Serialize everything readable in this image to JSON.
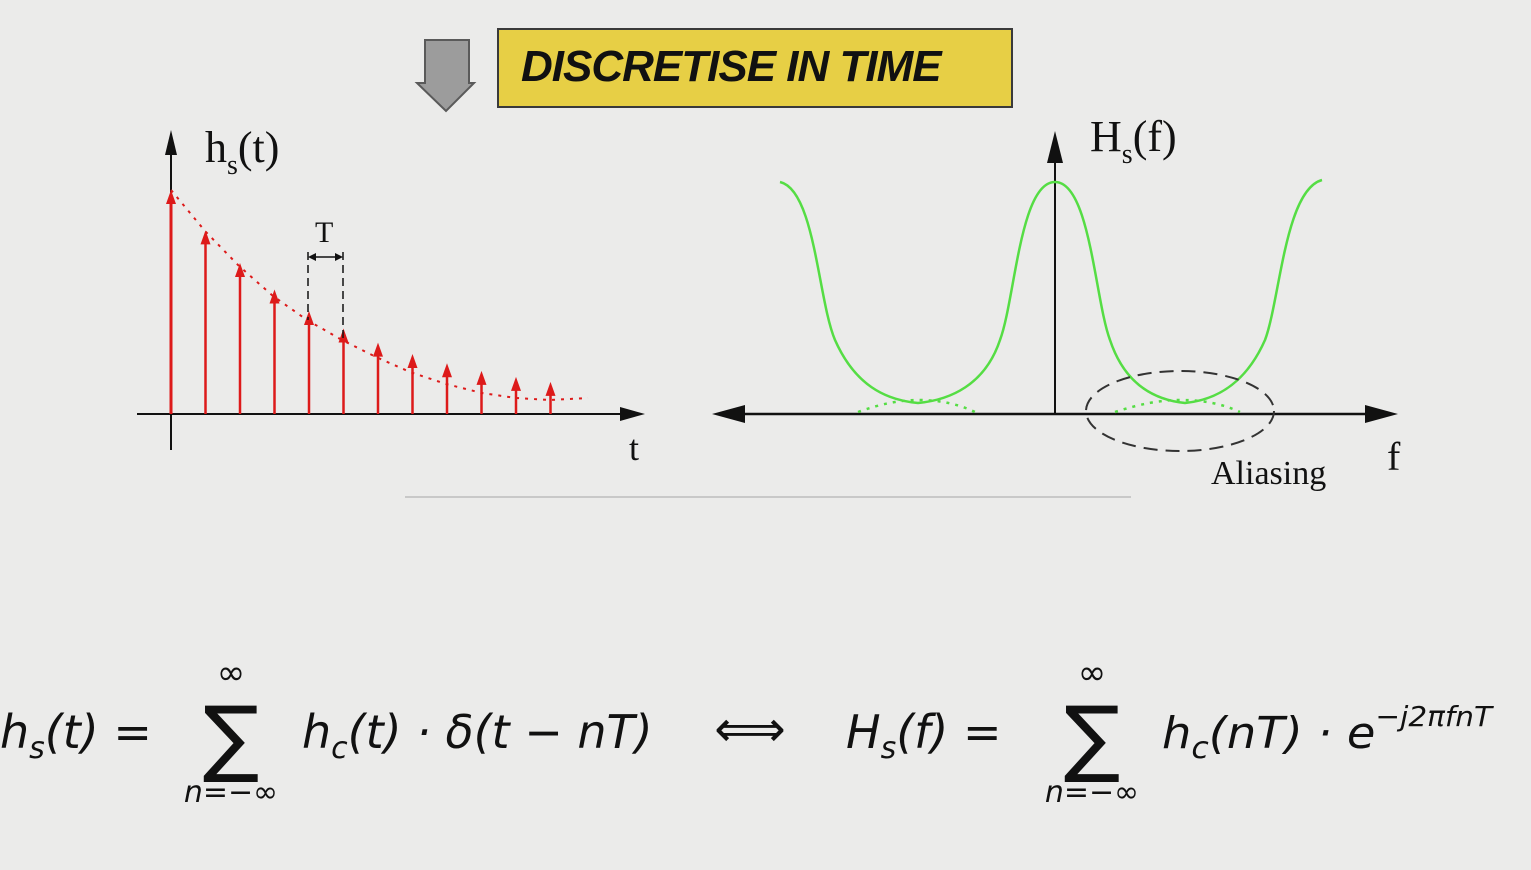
{
  "banner": {
    "text": "DISCRETISE IN TIME"
  },
  "left_plot": {
    "ylabel_main": "h",
    "ylabel_sub": "s",
    "ylabel_arg": "(t)",
    "xlabel": "t",
    "period_label": "T",
    "sample_count": 12,
    "colors": {
      "samples": "#dd1a1a",
      "axes": "#111111"
    }
  },
  "right_plot": {
    "ylabel_main": "H",
    "ylabel_sub": "s",
    "ylabel_arg": "(f)",
    "xlabel": "f",
    "annotation": "Aliasing",
    "colors": {
      "spectrum": "#55dd44",
      "axes": "#111111"
    }
  },
  "equation": {
    "lhs": {
      "h": "h",
      "s": "s",
      "arg": "(t) =",
      "sum_top": "∞",
      "sum_sign": "∑",
      "sum_bottom": "n=−∞",
      "term_h": "h",
      "term_c": "c",
      "term_rest": "(t) · δ(t − nT)"
    },
    "iff": "⟺",
    "rhs": {
      "h": "H",
      "s": "s",
      "arg": "(f) =",
      "sum_top": "∞",
      "sum_sign": "∑",
      "sum_bottom": "n=−∞",
      "term_h": "h",
      "term_c": "c",
      "term_rest": "(nT) · e",
      "exp": "−j2πfnT"
    }
  }
}
